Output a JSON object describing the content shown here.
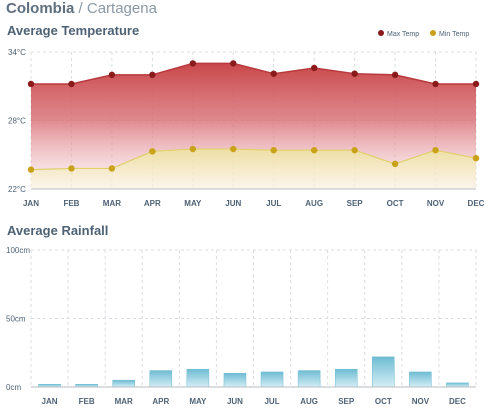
{
  "header": {
    "country": "Colombia",
    "separator": "/",
    "city": "Cartagena"
  },
  "chart_data": [
    {
      "type": "area",
      "title": "Average Temperature",
      "categories": [
        "JAN",
        "FEB",
        "MAR",
        "APR",
        "MAY",
        "JUN",
        "JUL",
        "AUG",
        "SEP",
        "OCT",
        "NOV",
        "DEC"
      ],
      "y_ticks": [
        "22°C",
        "28°C",
        "34°C"
      ],
      "ylim": [
        22,
        34
      ],
      "grid": true,
      "legend_position": "top-right",
      "series": [
        {
          "name": "Max Temp",
          "color": "#8b1a1a",
          "fill": "#c94a4a",
          "values": [
            31.2,
            31.2,
            32.0,
            32.0,
            33.0,
            33.0,
            32.1,
            32.6,
            32.1,
            32.0,
            31.2,
            31.2
          ]
        },
        {
          "name": "Min Temp",
          "color": "#c9a21a",
          "fill": "#efe39a",
          "values": [
            23.7,
            23.8,
            23.8,
            25.3,
            25.5,
            25.5,
            25.4,
            25.4,
            25.4,
            24.2,
            25.4,
            24.7
          ]
        }
      ]
    },
    {
      "type": "bar",
      "title": "Average Rainfall",
      "categories": [
        "JAN",
        "FEB",
        "MAR",
        "APR",
        "MAY",
        "JUN",
        "JUL",
        "AUG",
        "SEP",
        "OCT",
        "NOV",
        "DEC"
      ],
      "y_ticks": [
        "0cm",
        "50cm",
        "100cm"
      ],
      "ylim": [
        0,
        100
      ],
      "grid": true,
      "bar_color": "#7cc4d9",
      "values": [
        2,
        2,
        5,
        12,
        13,
        10,
        11,
        12,
        13,
        22,
        11,
        3
      ]
    }
  ]
}
